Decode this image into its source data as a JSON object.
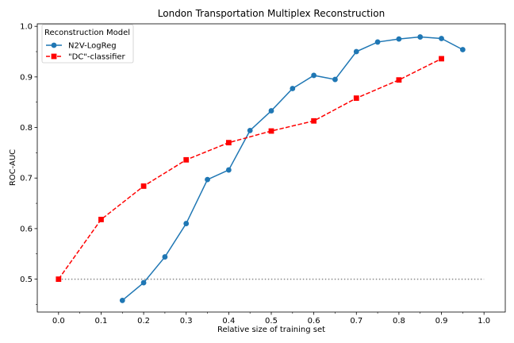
{
  "chart_data": {
    "type": "line",
    "title": "London Transportation Multiplex Reconstruction",
    "xlabel": "Relative size of training set",
    "ylabel": "ROC-AUC",
    "xlim": [
      -0.05,
      1.05
    ],
    "ylim": [
      0.435,
      1.005
    ],
    "xticks": [
      0.0,
      0.1,
      0.2,
      0.3,
      0.4,
      0.5,
      0.6,
      0.7,
      0.8,
      0.9,
      1.0
    ],
    "xtick_labels": [
      "0.0",
      "0.1",
      "0.2",
      "0.3",
      "0.4",
      "0.5",
      "0.6",
      "0.7",
      "0.8",
      "0.9",
      "1.0"
    ],
    "yticks": [
      0.5,
      0.6,
      0.7,
      0.8,
      0.9,
      1.0
    ],
    "ytick_labels": [
      "0.5",
      "0.6",
      "0.7",
      "0.8",
      "0.9",
      "1.0"
    ],
    "legend": {
      "title": "Reconstruction Model",
      "position": "top-left"
    },
    "series": [
      {
        "name": "N2V-LogReg",
        "color": "#1f77b4",
        "marker": "circle",
        "linestyle": "solid",
        "x": [
          0.15,
          0.2,
          0.25,
          0.3,
          0.35,
          0.4,
          0.45,
          0.5,
          0.55,
          0.6,
          0.65,
          0.7,
          0.75,
          0.8,
          0.85,
          0.9,
          0.95
        ],
        "y": [
          0.458,
          0.493,
          0.544,
          0.61,
          0.697,
          0.716,
          0.794,
          0.833,
          0.877,
          0.903,
          0.895,
          0.95,
          0.969,
          0.975,
          0.979,
          0.976,
          0.954
        ]
      },
      {
        "name": "\"DC\"-classifier",
        "color": "#ff0000",
        "marker": "square",
        "linestyle": "dashed",
        "x": [
          0.0,
          0.1,
          0.2,
          0.3,
          0.4,
          0.5,
          0.6,
          0.7,
          0.8,
          0.9
        ],
        "y": [
          0.5,
          0.618,
          0.684,
          0.736,
          0.77,
          0.793,
          0.813,
          0.858,
          0.894,
          0.936
        ]
      }
    ],
    "reference_line": {
      "y": 0.5,
      "x_range": [
        0.0,
        1.0
      ],
      "color": "#888888",
      "linestyle": "dotted"
    }
  }
}
